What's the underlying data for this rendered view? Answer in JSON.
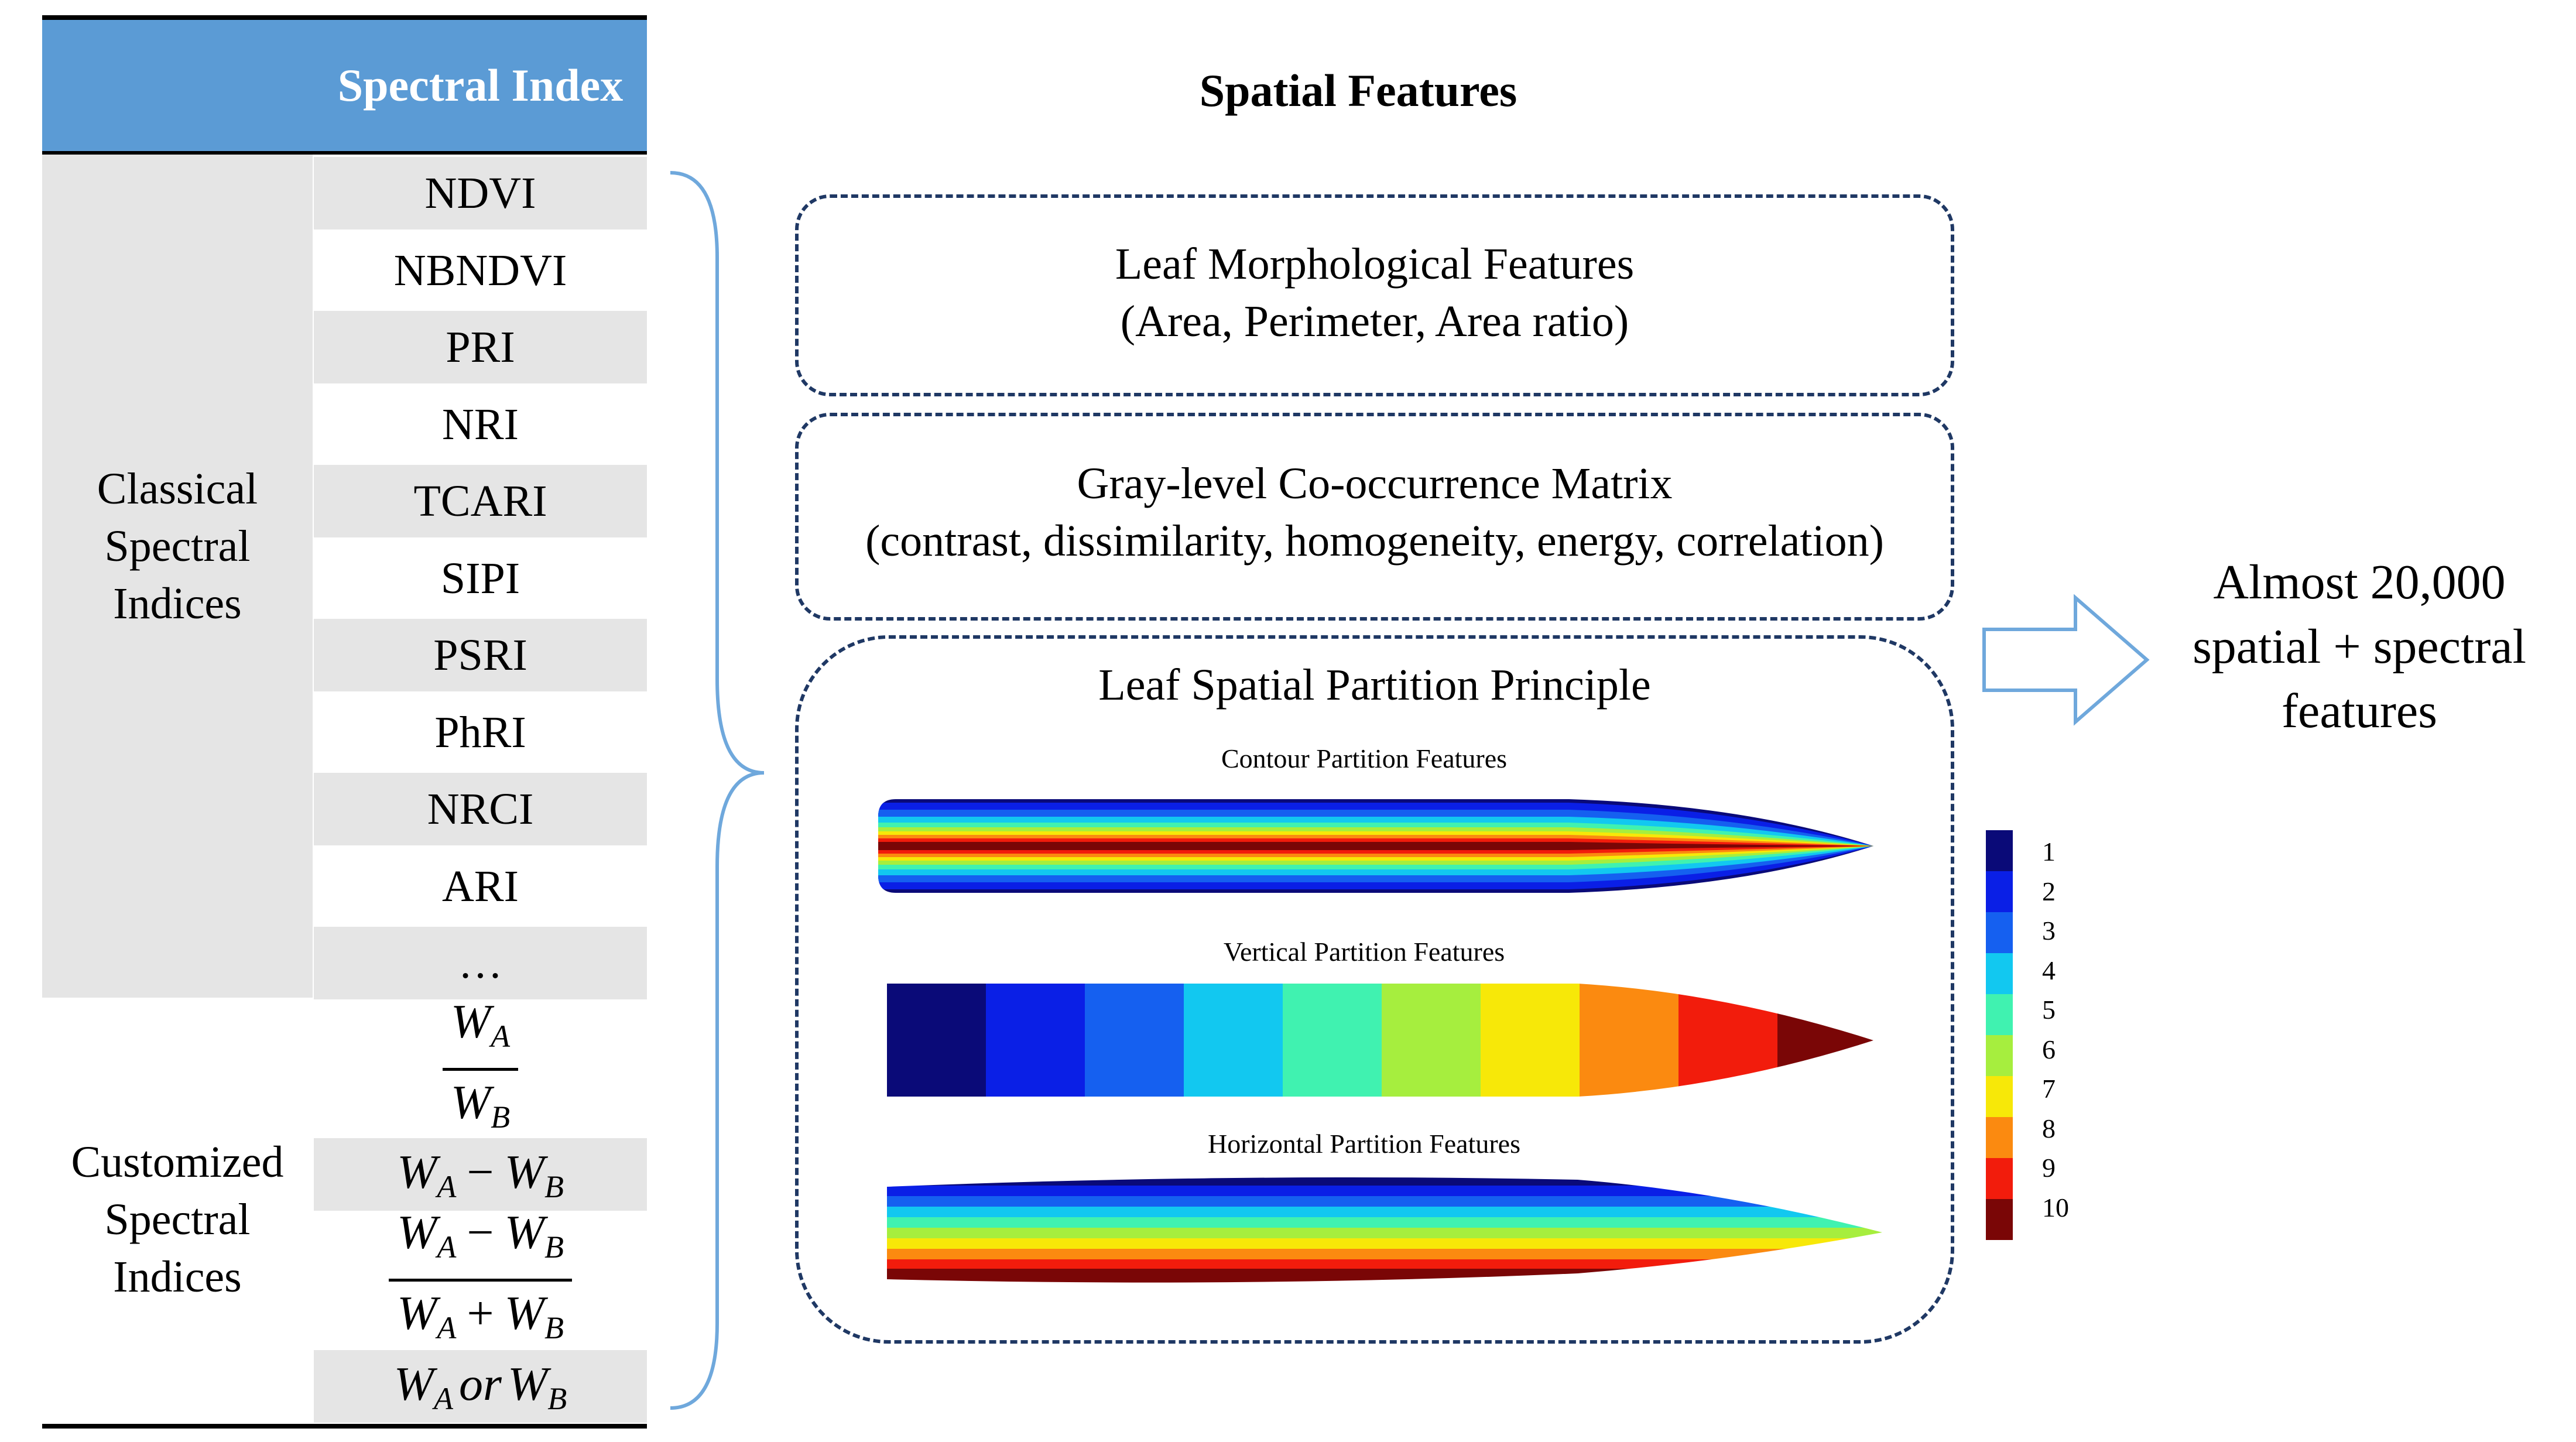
{
  "table": {
    "header": "Spectral Index",
    "classical_label": "Classical Spectral Indices",
    "classical_items": [
      "NDVI",
      "NBNDVI",
      "PRI",
      "NRI",
      "TCARI",
      "SIPI",
      "PSRI",
      "PhRI",
      "NRCI",
      "ARI",
      "…"
    ],
    "customized_label": "Customized Spectral Indices",
    "customized_formulas": {
      "ratio": {
        "num_var": "W",
        "num_sub": "A",
        "den_var": "W",
        "den_sub": "B"
      },
      "difference": {
        "a": "W",
        "a_sub": "A",
        "op": "−",
        "b": "W",
        "b_sub": "B"
      },
      "normalized": {
        "num_a": "W",
        "num_a_sub": "A",
        "num_op": "−",
        "num_b": "W",
        "num_b_sub": "B",
        "den_a": "W",
        "den_a_sub": "A",
        "den_op": "+",
        "den_b": "W",
        "den_b_sub": "B"
      },
      "either": {
        "a": "W",
        "a_sub": "A",
        "word": "or",
        "b": "W",
        "b_sub": "B"
      }
    }
  },
  "spatial": {
    "title": "Spatial Features",
    "morph_title": "Leaf Morphological Features",
    "morph_detail": "(Area, Perimeter, Area ratio)",
    "glcm_title": "Gray-level Co-occurrence Matrix",
    "glcm_detail": "(contrast, dissimilarity, homogeneity, energy, correlation)",
    "partition_title": "Leaf Spatial Partition Principle",
    "contour_label": "Contour Partition Features",
    "vertical_label": "Vertical Partition Features",
    "horizontal_label": "Horizontal Partition Features"
  },
  "colorbar": {
    "labels": [
      "1",
      "2",
      "3",
      "4",
      "5",
      "6",
      "7",
      "8",
      "9",
      "10"
    ],
    "colors": [
      "#0a0a78",
      "#0a1fe6",
      "#1560f0",
      "#12c8f0",
      "#40f2b0",
      "#a6ee3e",
      "#f7e808",
      "#fb8a10",
      "#f21c0c",
      "#7a0606"
    ]
  },
  "result": {
    "text_line1": "Almost 20,000",
    "text_line2": "spatial + spectral",
    "text_line3": "features"
  },
  "colors": {
    "header_blue": "#5b9bd5",
    "cell_grey": "#e5e5e5",
    "dash_navy": "#1f3864",
    "brace_blue": "#6fa8dc",
    "arrow_blue": "#6fa8dc"
  }
}
